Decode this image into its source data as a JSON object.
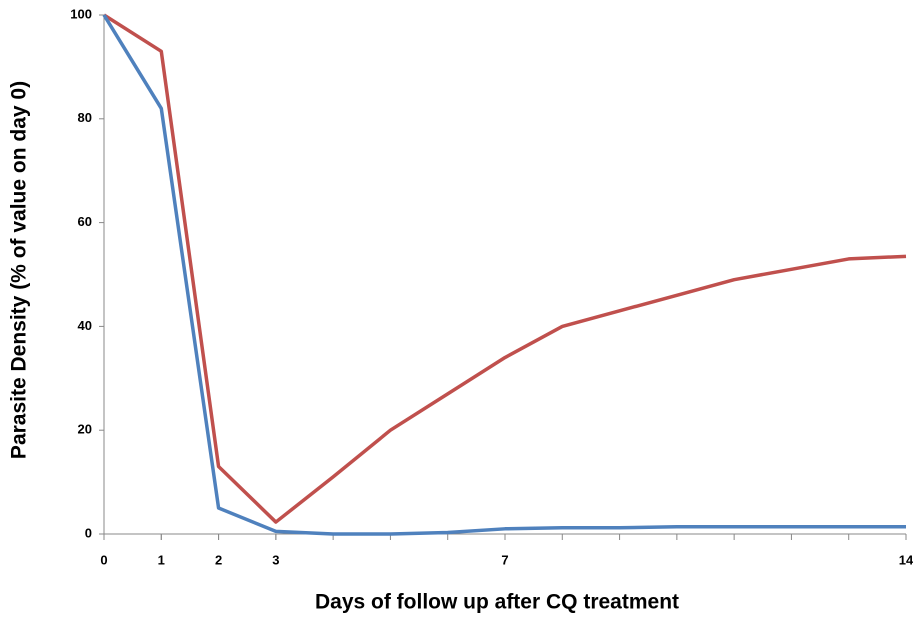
{
  "chart_data": {
    "type": "line",
    "xlabel": "Days of follow up after CQ treatment",
    "ylabel": "Parasite Density (% of value on day 0)",
    "x": [
      0,
      1,
      2,
      3,
      4,
      5,
      6,
      7,
      8,
      9,
      10,
      11,
      12,
      13,
      14
    ],
    "series": [
      {
        "color": "#c0504d",
        "values": [
          100,
          93,
          13,
          2.3,
          11,
          20,
          27,
          34,
          40,
          43,
          46,
          49,
          51,
          53,
          53.5
        ]
      },
      {
        "color": "#4f81bd",
        "values": [
          100,
          82,
          5,
          0.5,
          0,
          0,
          0.3,
          1,
          1.2,
          1.2,
          1.4,
          1.4,
          1.4,
          1.4,
          1.4
        ]
      }
    ],
    "xlim": [
      0,
      14
    ],
    "xticks": [
      0,
      1,
      2,
      3,
      7,
      14
    ],
    "xminorticks": [
      0,
      1,
      2,
      3,
      4,
      5,
      6,
      7,
      8,
      9,
      10,
      11,
      12,
      13,
      14
    ],
    "ylim": [
      0,
      100
    ],
    "yticks": [
      0,
      20,
      40,
      60,
      80,
      100
    ],
    "grid": false
  }
}
